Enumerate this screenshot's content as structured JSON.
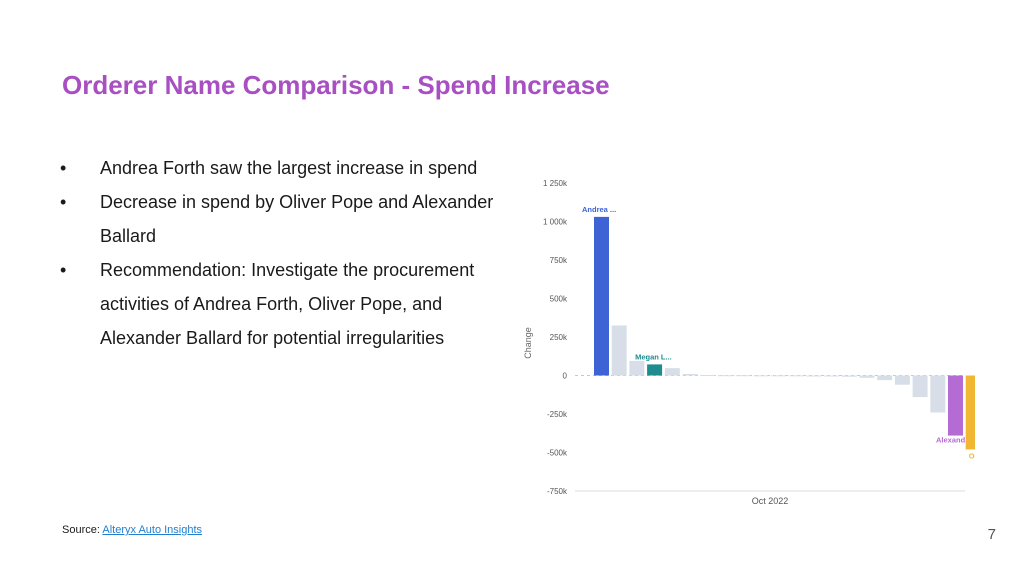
{
  "slide": {
    "title": "Orderer Name Comparison - Spend Increase",
    "bullets": [
      "Andrea Forth saw the largest increase in spend",
      "Decrease in spend by Oliver Pope and Alexander Ballard",
      "Recommendation: Investigate the procurement activities of Andrea Forth, Oliver Pope, and Alexander Ballard for potential irregularities"
    ],
    "bullet_symbol": "•",
    "source_label": "Source:",
    "source_link": "Alteryx Auto Insights",
    "page_number": "7"
  },
  "chart_data": {
    "type": "bar",
    "ylabel": "Change",
    "xlabel": "Oct 2022",
    "ylim": [
      -750,
      1250
    ],
    "yticks": [
      1250,
      1000,
      750,
      500,
      250,
      0,
      -250,
      -500,
      -750
    ],
    "ytick_labels": [
      "1 250k",
      "1 000k",
      "750k",
      "500k",
      "250k",
      "0",
      "-250k",
      "-500k",
      "-750k"
    ],
    "grid": false,
    "values": [
      1030,
      325,
      95,
      72,
      48,
      10,
      3,
      2,
      2,
      1,
      1,
      1,
      0,
      -3,
      -8,
      -15,
      -30,
      -60,
      -140,
      -240,
      -390,
      -480
    ],
    "bar_labels": [
      "Andrea ...",
      "",
      "",
      "Megan L...",
      "",
      "",
      "",
      "",
      "",
      "",
      "",
      "",
      "",
      "",
      "",
      "",
      "",
      "",
      "",
      "",
      "Alexand...",
      "Oliver P..."
    ],
    "colors": {
      "default": "#d8dee8",
      "highlight": [
        "#3d63d4",
        "",
        "",
        "#1e8b8e",
        "",
        "",
        "",
        "",
        "",
        "",
        "",
        "",
        "",
        "",
        "",
        "",
        "",
        "",
        "",
        "",
        "#b56bd4",
        "#f1b732"
      ],
      "label_colors": [
        "#3d63d4",
        "",
        "",
        "#1e8b8e",
        "",
        "",
        "",
        "",
        "",
        "",
        "",
        "",
        "",
        "",
        "",
        "",
        "",
        "",
        "",
        "",
        "#b56bd4",
        "#f1b732"
      ]
    }
  }
}
